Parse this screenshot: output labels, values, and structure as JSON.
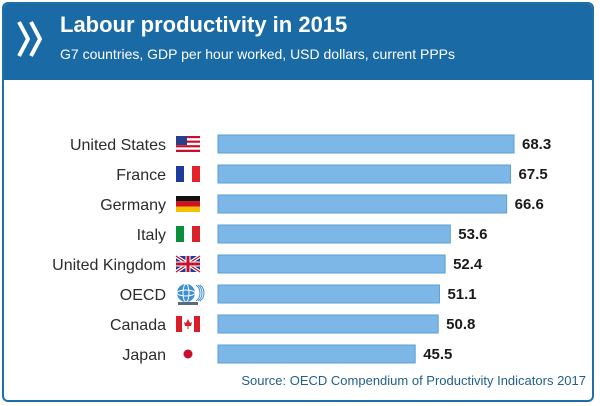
{
  "header": {
    "title": "Labour productivity in 2015",
    "subtitle": "G7 countries, GDP per hour worked, USD dollars, current PPPs"
  },
  "source": "Source: OECD Compendium of Productivity Indicators 2017",
  "colors": {
    "header": "#1a6aa6",
    "bar": "#7db7e8",
    "bar_border": "#5a9fd6",
    "frame": "#1f6fa8"
  },
  "chart_data": {
    "type": "bar",
    "orientation": "horizontal",
    "categories": [
      "United States",
      "France",
      "Germany",
      "Italy",
      "United Kingdom",
      "OECD",
      "Canada",
      "Japan"
    ],
    "values": [
      68.3,
      67.5,
      66.6,
      53.6,
      52.4,
      51.1,
      50.8,
      45.5
    ],
    "value_labels": [
      "68.3",
      "67.5",
      "66.6",
      "53.6",
      "52.4",
      "51.1",
      "50.8",
      "45.5"
    ],
    "icons": [
      "flag-us-icon",
      "flag-fr-icon",
      "flag-de-icon",
      "flag-it-icon",
      "flag-uk-icon",
      "oecd-logo-icon",
      "flag-ca-icon",
      "flag-jp-icon"
    ],
    "xlim": [
      0,
      68.3
    ],
    "grid": false,
    "legend": "none"
  }
}
